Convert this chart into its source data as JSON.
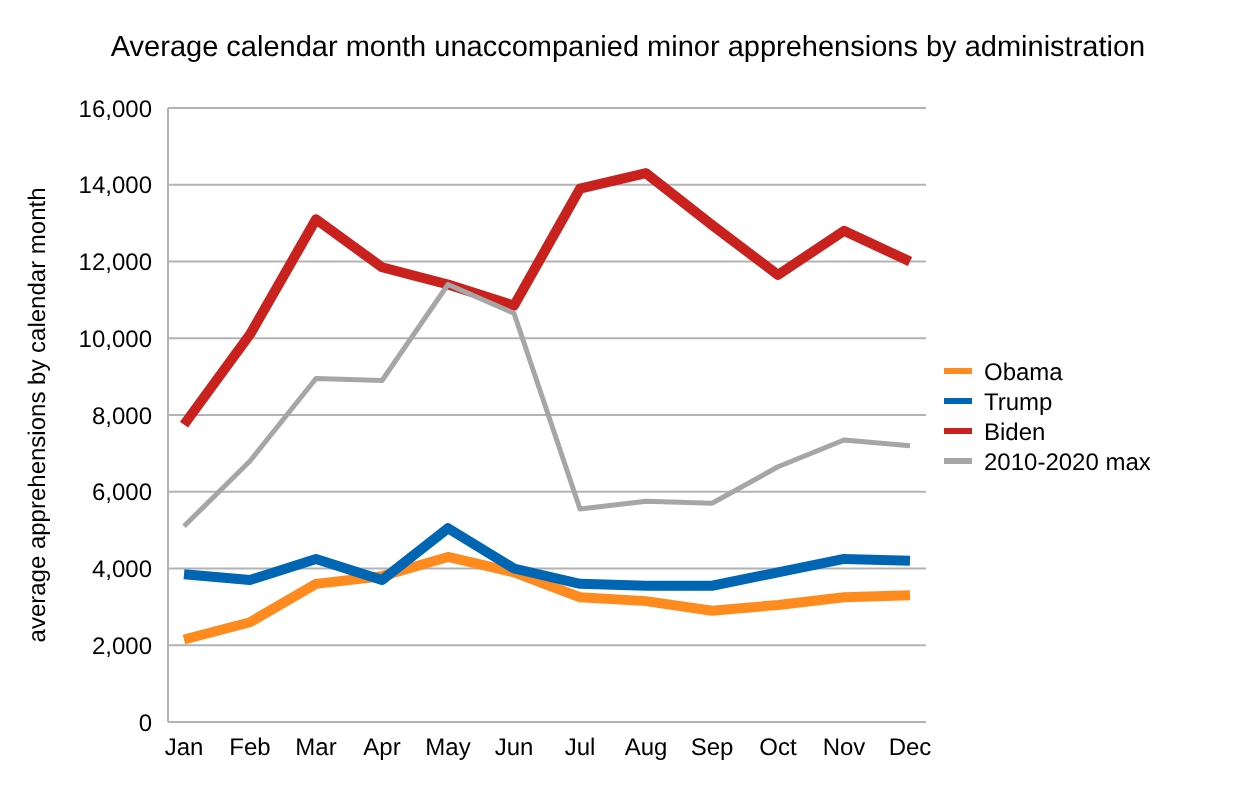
{
  "chart_data": {
    "type": "line",
    "title": "Average calendar month unaccompanied minor apprehensions by administration",
    "ylabel": "average apprehensions by calendar month",
    "categories": [
      "Jan",
      "Feb",
      "Mar",
      "Apr",
      "May",
      "Jun",
      "Jul",
      "Aug",
      "Sep",
      "Oct",
      "Nov",
      "Dec"
    ],
    "series": [
      {
        "name": "Obama",
        "color": "#ff8a1e",
        "values": [
          2150,
          2600,
          3600,
          3800,
          4300,
          3900,
          3250,
          3150,
          2900,
          3050,
          3250,
          3300
        ]
      },
      {
        "name": "Trump",
        "color": "#0066b3",
        "values": [
          3850,
          3700,
          4250,
          3700,
          5050,
          4000,
          3600,
          3550,
          3550,
          3900,
          4250,
          4200
        ]
      },
      {
        "name": "Biden",
        "color": "#c9211e",
        "values": [
          7750,
          10100,
          13100,
          11850,
          11400,
          10850,
          13900,
          14300,
          12950,
          11650,
          12800,
          12000
        ]
      },
      {
        "name": "2010-2020 max",
        "color": "#a6a6a6",
        "values": [
          5100,
          6800,
          8950,
          8900,
          11400,
          10650,
          5550,
          5750,
          5700,
          6650,
          7350,
          7200
        ]
      }
    ],
    "ylim": [
      0,
      16000
    ],
    "yticks": [
      {
        "value": 0,
        "label": "0"
      },
      {
        "value": 2000,
        "label": "2,000"
      },
      {
        "value": 4000,
        "label": "4,000"
      },
      {
        "value": 6000,
        "label": "6,000"
      },
      {
        "value": 8000,
        "label": "8,000"
      },
      {
        "value": 10000,
        "label": "10,000"
      },
      {
        "value": 12000,
        "label": "12,000"
      },
      {
        "value": 14000,
        "label": "14,000"
      },
      {
        "value": 16000,
        "label": "16,000"
      }
    ],
    "grid": "y",
    "legend": "right",
    "marker": "none",
    "line_style": "solid"
  }
}
